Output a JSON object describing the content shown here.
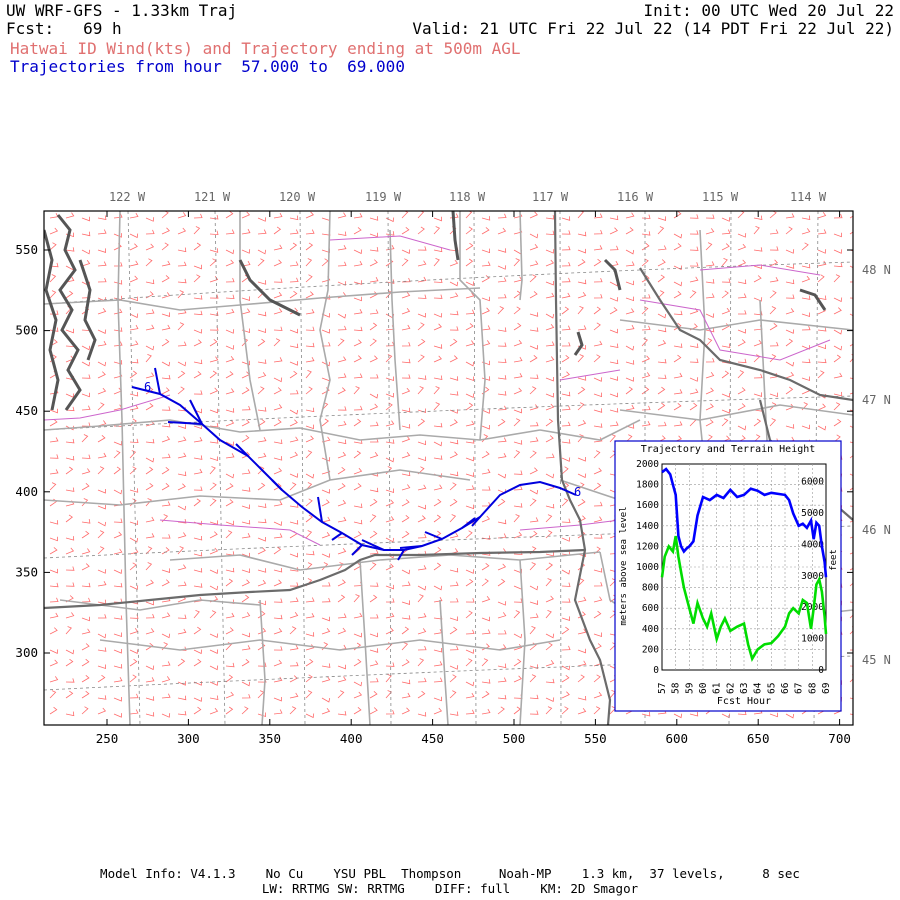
{
  "header": {
    "title": "UW WRF-GFS - 1.33km Traj",
    "init": "Init: 00 UTC Wed 20 Jul 22",
    "fcst": "Fcst:   69 h",
    "valid": "Valid: 21 UTC Fri 22 Jul 22 (14 PDT Fri 22 Jul 22)",
    "field": "Hatwai ID Wind(kts) and Trajectory ending at 500m AGL",
    "traj_range": "Trajectories from hour  57.000 to  69.000"
  },
  "map": {
    "lon_labels": [
      "122 W",
      "121 W",
      "120 W",
      "119 W",
      "118 W",
      "117 W",
      "116 W",
      "115 W",
      "114 W"
    ],
    "lat_labels": [
      "48 N",
      "47 N",
      "46 N",
      "45 N"
    ],
    "x_ticks": [
      "250",
      "300",
      "350",
      "400",
      "450",
      "500",
      "550",
      "600",
      "650",
      "700"
    ],
    "y_ticks": [
      "550",
      "500",
      "450",
      "400",
      "350",
      "300"
    ],
    "colors": {
      "trajectory": "#0000dd",
      "barbs": "#ff6666",
      "coast": "#555555",
      "borders": "#999999",
      "counties": "#cc66cc"
    },
    "trajectory_label_start": "6",
    "trajectory_label_end": "6"
  },
  "inset": {
    "title": "Trajectory and Terrain Height",
    "ylabel_left": "meters above sea level",
    "ylabel_right": "feet",
    "xlabel": "Fcst Hour",
    "left_ticks": [
      "0",
      "200",
      "400",
      "600",
      "800",
      "1000",
      "1200",
      "1400",
      "1600",
      "1800",
      "2000"
    ],
    "right_ticks": [
      "0",
      "1000",
      "2000",
      "3000",
      "4000",
      "5000",
      "6000"
    ],
    "x_ticks": [
      "57",
      "58",
      "59",
      "60",
      "61",
      "62",
      "63",
      "64",
      "65",
      "66",
      "67",
      "68",
      "69"
    ],
    "colors": {
      "trajectory": "#0000ff",
      "terrain": "#00dd00"
    }
  },
  "chart_data": {
    "type": "line",
    "title": "Trajectory and Terrain Height",
    "xlabel": "Fcst Hour",
    "ylabel": "meters above sea level",
    "xlim": [
      57,
      69
    ],
    "ylim": [
      0,
      2000
    ],
    "grid": true,
    "series": [
      {
        "values_x": [
          57.0,
          57.3,
          57.6,
          57.8,
          58.0,
          58.2,
          58.4,
          58.6,
          58.8,
          59.0,
          59.3,
          59.6,
          60.0,
          60.5,
          61.0,
          61.5,
          62.0,
          62.5,
          63.0,
          63.5,
          64.0,
          64.5,
          65.0,
          65.5,
          66.0,
          66.3,
          66.6,
          67.0,
          67.3,
          67.6,
          67.9,
          68.1,
          68.3,
          68.5,
          68.7,
          68.9,
          69.0
        ],
        "values": [
          1920,
          1950,
          1900,
          1800,
          1700,
          1300,
          1200,
          1150,
          1180,
          1200,
          1250,
          1500,
          1680,
          1650,
          1700,
          1670,
          1750,
          1680,
          1700,
          1760,
          1740,
          1700,
          1720,
          1710,
          1700,
          1650,
          1520,
          1400,
          1420,
          1380,
          1450,
          1270,
          1430,
          1400,
          1200,
          1050,
          900
        ]
      },
      {
        "values_x": [
          57.0,
          57.2,
          57.5,
          57.8,
          58.0,
          58.2,
          58.4,
          58.6,
          58.8,
          59.0,
          59.3,
          59.6,
          60.0,
          60.3,
          60.6,
          61.0,
          61.3,
          61.6,
          62.0,
          62.5,
          63.0,
          63.3,
          63.6,
          64.0,
          64.5,
          65.0,
          65.5,
          66.0,
          66.3,
          66.6,
          67.0,
          67.3,
          67.6,
          67.9,
          68.1,
          68.3,
          68.5,
          68.7,
          68.9,
          69.0
        ],
        "values": [
          900,
          1100,
          1200,
          1150,
          1300,
          1100,
          950,
          800,
          700,
          600,
          450,
          650,
          500,
          420,
          550,
          300,
          420,
          500,
          380,
          420,
          450,
          250,
          110,
          200,
          250,
          260,
          330,
          420,
          550,
          600,
          550,
          680,
          650,
          400,
          600,
          830,
          880,
          760,
          520,
          350
        ]
      }
    ]
  },
  "footer": {
    "line1": "Model Info: V4.1.3    No Cu    YSU PBL  Thompson     Noah-MP    1.3 km,  37 levels,     8 sec",
    "line2": "LW: RRTMG SW: RRTMG    DIFF: full    KM: 2D Smagor"
  }
}
